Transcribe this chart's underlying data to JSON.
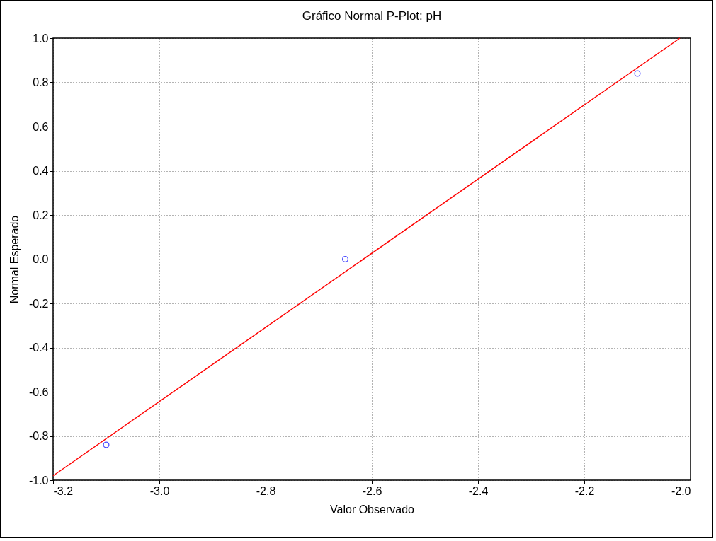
{
  "chart_data": {
    "type": "scatter",
    "title": "Gráfico Normal P-Plot: pH",
    "xlabel": "Valor Observado",
    "ylabel": "Normal Esperado",
    "xlim": [
      -3.2,
      -2.0
    ],
    "ylim": [
      -1.0,
      1.0
    ],
    "xticks": [
      -3.2,
      {
        "value": -3,
        "label": "-3.0"
      },
      -2.8,
      -2.6,
      -2.4,
      -2.2,
      {
        "value": -2,
        "label": "-2.0"
      }
    ],
    "yticks": [
      {
        "value": -1,
        "label": "-1.0"
      },
      -0.8,
      -0.6,
      -0.4,
      -0.2,
      {
        "value": 0,
        "label": "0.0"
      },
      0.2,
      0.4,
      0.6,
      0.8,
      {
        "value": 1,
        "label": "1.0"
      }
    ],
    "grid": true,
    "series": [
      {
        "marker": "circle",
        "color": "#0000ff",
        "x": [
          -3.1,
          -2.65,
          -2.1
        ],
        "values": [
          -0.84,
          0.0,
          0.84
        ]
      },
      {
        "type": "line",
        "color": "#ff0000",
        "line_style": "solid",
        "x": [
          -3.2,
          -2.02
        ],
        "values": [
          -0.98,
          1.0
        ]
      }
    ]
  }
}
